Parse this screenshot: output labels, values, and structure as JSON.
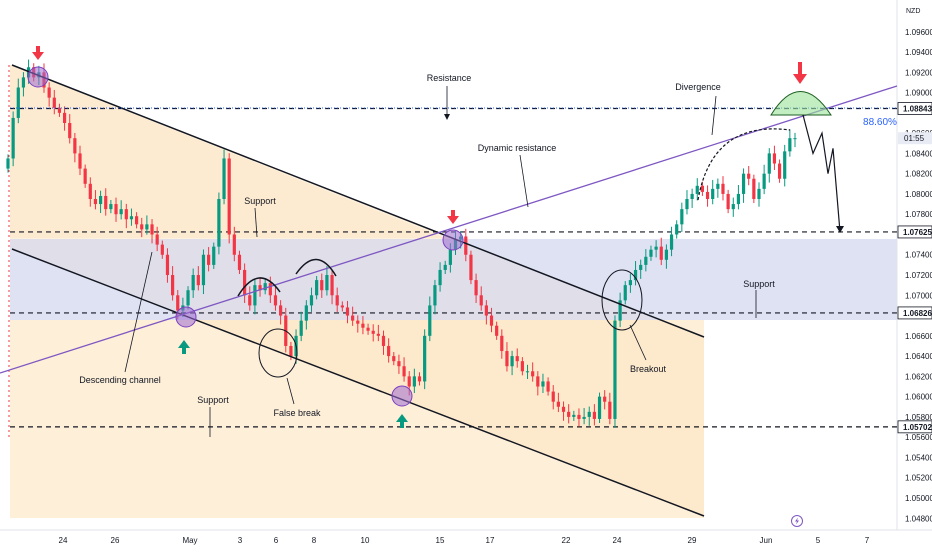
{
  "chart_data": {
    "type": "candlestick",
    "currency": "NZD",
    "y_ticks": [
      "1.09600",
      "1.09400",
      "1.09200",
      "1.09000",
      "1.08600",
      "1.08400",
      "1.08200",
      "1.08000",
      "1.07800",
      "1.07400",
      "1.07200",
      "1.07000",
      "1.06600",
      "1.06400",
      "1.06200",
      "1.06000",
      "1.05800",
      "1.05600",
      "1.05400",
      "1.05200",
      "1.05000",
      "1.04800"
    ],
    "y_tick_values": [
      1.096,
      1.094,
      1.092,
      1.09,
      1.086,
      1.084,
      1.082,
      1.08,
      1.078,
      1.074,
      1.072,
      1.07,
      1.066,
      1.064,
      1.062,
      1.06,
      1.058,
      1.056,
      1.054,
      1.052,
      1.05,
      1.048
    ],
    "x_ticks": [
      "24",
      "26",
      "May",
      "3",
      "6",
      "8",
      "10",
      "15",
      "17",
      "22",
      "24",
      "29",
      "Jun",
      "5",
      "7"
    ],
    "price_levels": [
      {
        "label": "1.08843",
        "value": 1.08843,
        "role": "resistance"
      },
      {
        "label": "1.07625",
        "value": 1.07625,
        "role": "support"
      },
      {
        "label": "1.06826",
        "value": 1.06826,
        "role": "support"
      },
      {
        "label": "1.05702",
        "value": 1.05702,
        "role": "support"
      }
    ],
    "current_price": {
      "label": "01:55",
      "value": 1.0855
    },
    "fib_label": "88.60%",
    "annotations": {
      "resistance": "Resistance",
      "divergence": "Divergence",
      "dynamic_resistance": "Dynamic resistance",
      "support_upper": "Support",
      "support_right": "Support",
      "support_lower": "Support",
      "descending_channel": "Descending channel",
      "false_break": "False break",
      "breakout": "Breakout"
    },
    "closes": [
      1.0835,
      1.0875,
      1.0905,
      1.0915,
      1.0925,
      1.0915,
      1.092,
      1.0905,
      1.0895,
      1.0885,
      1.088,
      1.087,
      1.0855,
      1.084,
      1.0825,
      1.081,
      1.0795,
      1.079,
      1.0798,
      1.0785,
      1.079,
      1.078,
      1.0785,
      1.0775,
      1.0778,
      1.077,
      1.0765,
      1.077,
      1.076,
      1.075,
      1.074,
      1.072,
      1.07,
      1.0685,
      1.069,
      1.0705,
      1.072,
      1.071,
      1.074,
      1.073,
      1.0748,
      1.0795,
      1.0835,
      1.076,
      1.074,
      1.0725,
      1.07,
      1.069,
      1.071,
      1.0705,
      1.0712,
      1.07,
      1.069,
      1.068,
      1.065,
      1.064,
      1.066,
      1.0675,
      1.069,
      1.07,
      1.0715,
      1.0705,
      1.072,
      1.07,
      1.069,
      1.0688,
      1.068,
      1.0675,
      1.0672,
      1.0668,
      1.0665,
      1.0662,
      1.066,
      1.065,
      1.064,
      1.0635,
      1.063,
      1.062,
      1.061,
      1.062,
      1.0615,
      1.066,
      1.069,
      1.071,
      1.0725,
      1.073,
      1.0745,
      1.0755,
      1.0758,
      1.074,
      1.0715,
      1.07,
      1.069,
      1.068,
      1.067,
      1.066,
      1.0645,
      1.063,
      1.064,
      1.0635,
      1.0625,
      1.0625,
      1.062,
      1.061,
      1.0615,
      1.0605,
      1.0595,
      1.059,
      1.0585,
      1.058,
      1.0582,
      1.0578,
      1.058,
      1.0585,
      1.0578,
      1.06,
      1.0595,
      1.0578,
      1.0675,
      1.0695,
      1.071,
      1.0715,
      1.0725,
      1.073,
      1.0738,
      1.0745,
      1.0748,
      1.0735,
      1.0745,
      1.076,
      1.077,
      1.0785,
      1.0795,
      1.08,
      1.0808,
      1.0802,
      1.0795,
      1.0805,
      1.081,
      1.08,
      1.0785,
      1.079,
      1.08,
      1.082,
      1.0815,
      1.0795,
      1.0805,
      1.082,
      1.084,
      1.083,
      1.0815,
      1.0842,
      1.0855,
      1.0855
    ],
    "forecast_path": [
      1.0878,
      1.084,
      1.086,
      1.082,
      1.0845,
      1.07625
    ]
  }
}
